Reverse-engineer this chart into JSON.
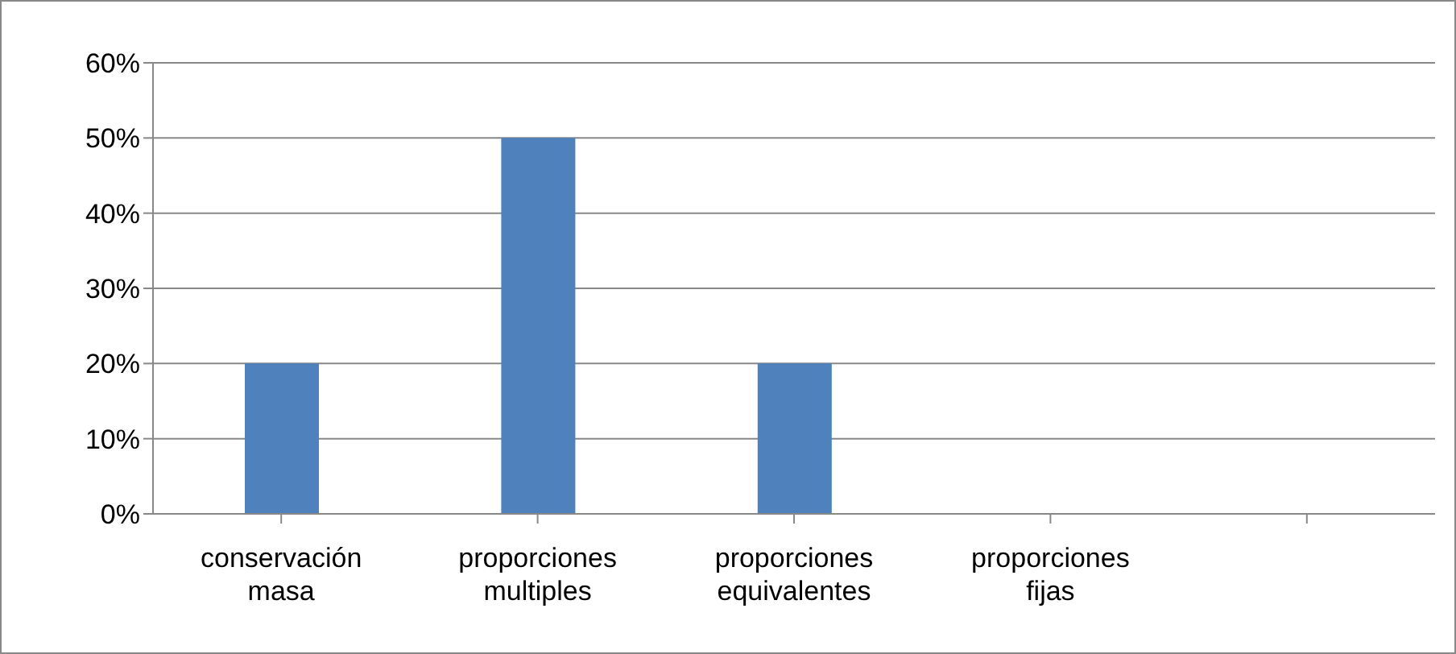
{
  "chart_data": {
    "type": "bar",
    "categories": [
      "conservación masa",
      "proporciones multiples",
      "proporciones equivalentes",
      "proporciones fijas",
      null
    ],
    "values": [
      20,
      50,
      20,
      0,
      null
    ],
    "color": "#4f81bd",
    "ylim": [
      0,
      60
    ],
    "yticks": [
      {
        "value": 0,
        "label": "0%"
      },
      {
        "value": 10,
        "label": "10%"
      },
      {
        "value": 20,
        "label": "20%"
      },
      {
        "value": 30,
        "label": "30%"
      },
      {
        "value": 40,
        "label": "40%"
      },
      {
        "value": 50,
        "label": "50%"
      },
      {
        "value": 60,
        "label": "60%"
      }
    ],
    "grid": "y"
  }
}
